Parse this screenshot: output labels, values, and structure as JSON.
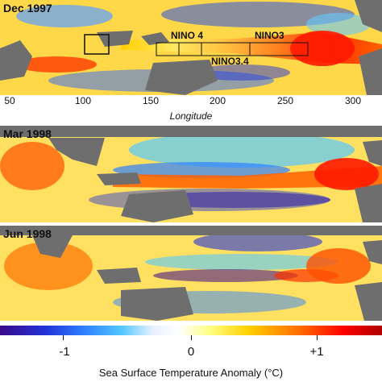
{
  "panels": [
    {
      "title": "Dec 1997"
    },
    {
      "title": "Mar 1998"
    },
    {
      "title": "Jun 1998"
    }
  ],
  "longitude_axis": {
    "label": "Longitude",
    "ticks": [
      "50",
      "100",
      "150",
      "200",
      "250",
      "300"
    ]
  },
  "nino_regions": {
    "nino4": "NINO 4",
    "nino3": "NINO3",
    "nino34": "NINO3.4"
  },
  "colorbar": {
    "title": "Sea Surface Temperature Anomaly (°C)",
    "labels": [
      "-1",
      "0",
      "+1"
    ],
    "range": [
      -1.5,
      1.5
    ]
  },
  "colors": {
    "land": "#6e6e6e",
    "warm": "#ff3000",
    "cool": "#2a52e0",
    "neutral": "#ffe860"
  }
}
